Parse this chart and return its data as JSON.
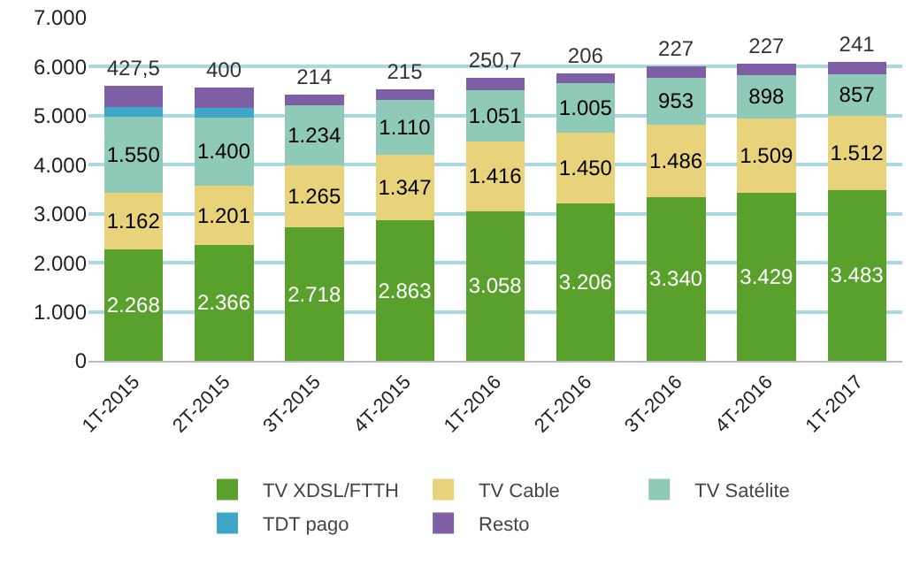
{
  "chart_data": {
    "type": "bar",
    "stacked": true,
    "categories": [
      "1T-2015",
      "2T-2015",
      "3T-2015",
      "4T-2015",
      "1T-2016",
      "2T-2016",
      "3T-2016",
      "4T-2016",
      "1T-2017"
    ],
    "series": [
      {
        "name": "TV XDSL/FTTH",
        "color": "#5aa02c",
        "values": [
          2268,
          2366,
          2718,
          2863,
          3058,
          3206,
          3340,
          3429,
          3483
        ],
        "value_labels": [
          "2.268",
          "2.366",
          "2.718",
          "2.863",
          "3.058",
          "3.206",
          "3.340",
          "3.429",
          "3.483"
        ]
      },
      {
        "name": "TV Cable",
        "color": "#e8d27a",
        "values": [
          1162,
          1201,
          1265,
          1347,
          1416,
          1450,
          1486,
          1509,
          1512
        ],
        "value_labels": [
          "1.162",
          "1.201",
          "1.265",
          "1.347",
          "1.416",
          "1.450",
          "1.486",
          "1.509",
          "1.512"
        ]
      },
      {
        "name": "TV Satélite",
        "color": "#8fc9b8",
        "values": [
          1550,
          1400,
          1234,
          1110,
          1051,
          1005,
          953,
          898,
          857
        ],
        "value_labels": [
          "1.550",
          "1.400",
          "1.234",
          "1.110",
          "1.051",
          "1.005",
          "953",
          "898",
          "857"
        ]
      },
      {
        "name": "TDT pago",
        "color": "#3ea6c6",
        "values": [
          200,
          200,
          0,
          0,
          0,
          0,
          0,
          0,
          0
        ]
      },
      {
        "name": "Resto",
        "color": "#7e5fa5",
        "values": [
          427.5,
          400,
          214,
          215,
          250.7,
          206,
          227,
          227,
          241
        ],
        "value_labels": [
          "427,5",
          "400",
          "214",
          "215",
          "250,7",
          "206",
          "227",
          "227",
          "241"
        ]
      }
    ],
    "ylim": [
      0,
      7000
    ],
    "yticks": [
      {
        "value": 0,
        "label": "0"
      },
      {
        "value": 1000,
        "label": "1.000"
      },
      {
        "value": 2000,
        "label": "2.000"
      },
      {
        "value": 3000,
        "label": "3.000"
      },
      {
        "value": 4000,
        "label": "4.000"
      },
      {
        "value": 5000,
        "label": "5.000"
      },
      {
        "value": 6000,
        "label": "6.000"
      },
      {
        "value": 7000,
        "label": "7.000"
      }
    ],
    "grid": "y",
    "legend": "bottom"
  }
}
